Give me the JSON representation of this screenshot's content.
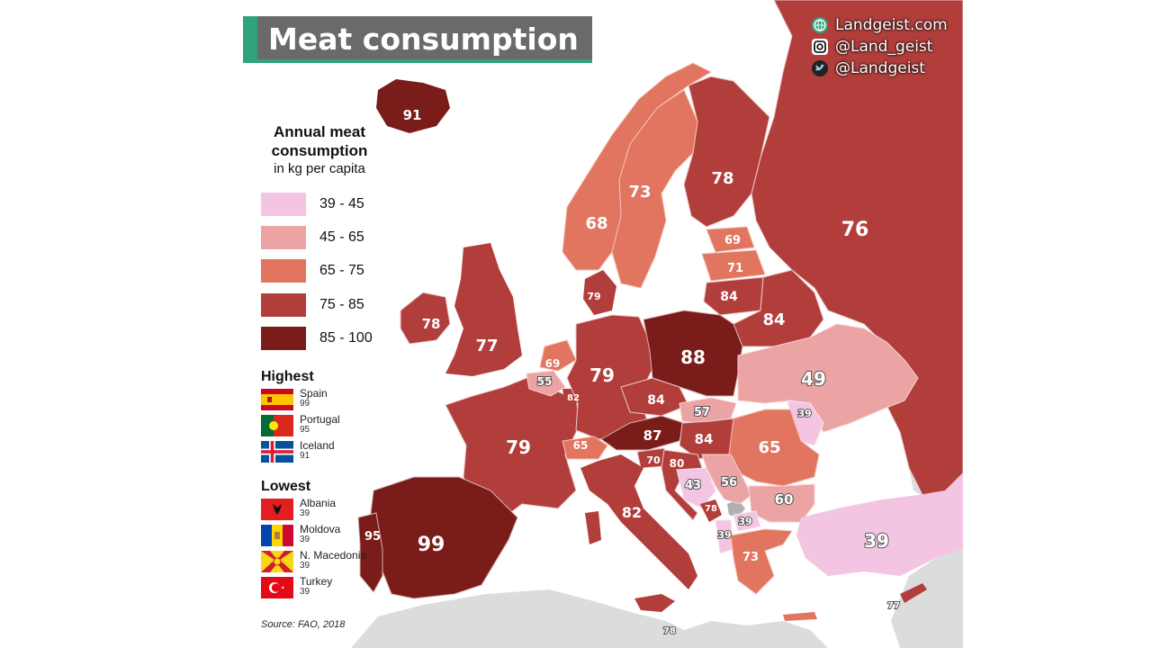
{
  "title": "Meat consumption",
  "social": [
    {
      "icon": "globe-icon",
      "text": "Landgeist.com"
    },
    {
      "icon": "instagram-icon",
      "text": "@Land_geist"
    },
    {
      "icon": "twitter-icon",
      "text": "@Landgeist"
    }
  ],
  "legend": {
    "title": "Annual meat consumption",
    "subtitle": "in kg per capita",
    "items": [
      {
        "label": "39 - 45",
        "color": "#f4c5e2"
      },
      {
        "label": "45 - 65",
        "color": "#eba3a3"
      },
      {
        "label": "65 - 75",
        "color": "#e17560"
      },
      {
        "label": "75 - 85",
        "color": "#b23e3b"
      },
      {
        "label": "85 - 100",
        "color": "#7a1c19"
      }
    ]
  },
  "highest": {
    "heading": "Highest",
    "items": [
      {
        "name": "Spain",
        "value": "99",
        "flag": "spain-flag-icon"
      },
      {
        "name": "Portugal",
        "value": "95",
        "flag": "portugal-flag-icon"
      },
      {
        "name": "Iceland",
        "value": "91",
        "flag": "iceland-flag-icon"
      }
    ]
  },
  "lowest": {
    "heading": "Lowest",
    "items": [
      {
        "name": "Albania",
        "value": "39",
        "flag": "albania-flag-icon"
      },
      {
        "name": "Moldova",
        "value": "39",
        "flag": "moldova-flag-icon"
      },
      {
        "name": "N. Macedonia",
        "value": "39",
        "flag": "north-macedonia-flag-icon"
      },
      {
        "name": "Turkey",
        "value": "39",
        "flag": "turkey-flag-icon"
      }
    ]
  },
  "source": "Source: FAO, 2018",
  "colors": {
    "sea": "#ffffff",
    "no_data": "#dcdcdc",
    "accent": "#2fa37a"
  },
  "countries": [
    {
      "id": "russia",
      "value": "76"
    },
    {
      "id": "finland",
      "value": "78"
    },
    {
      "id": "sweden",
      "value": "73"
    },
    {
      "id": "norway",
      "value": "68"
    },
    {
      "id": "iceland",
      "value": "91"
    },
    {
      "id": "estonia",
      "value": "69"
    },
    {
      "id": "latvia",
      "value": "71"
    },
    {
      "id": "lithuania",
      "value": "84"
    },
    {
      "id": "belarus",
      "value": "84"
    },
    {
      "id": "denmark",
      "value": "79"
    },
    {
      "id": "ireland",
      "value": "78"
    },
    {
      "id": "uk",
      "value": "77"
    },
    {
      "id": "netherlands",
      "value": "69"
    },
    {
      "id": "belgium",
      "value": "55"
    },
    {
      "id": "luxembourg",
      "value": "82"
    },
    {
      "id": "germany",
      "value": "79"
    },
    {
      "id": "poland",
      "value": "88"
    },
    {
      "id": "ukraine",
      "value": "49"
    },
    {
      "id": "czechia",
      "value": "84"
    },
    {
      "id": "slovakia",
      "value": "57"
    },
    {
      "id": "moldova",
      "value": "39"
    },
    {
      "id": "france",
      "value": "79"
    },
    {
      "id": "switzerland",
      "value": "65"
    },
    {
      "id": "austria",
      "value": "87"
    },
    {
      "id": "hungary",
      "value": "84"
    },
    {
      "id": "romania",
      "value": "65"
    },
    {
      "id": "slovenia",
      "value": "70"
    },
    {
      "id": "croatia",
      "value": "80"
    },
    {
      "id": "bosnia",
      "value": "43"
    },
    {
      "id": "serbia",
      "value": "56"
    },
    {
      "id": "bulgaria",
      "value": "60"
    },
    {
      "id": "montenegro",
      "value": "78"
    },
    {
      "id": "north-macedonia",
      "value": "39"
    },
    {
      "id": "albania",
      "value": "39"
    },
    {
      "id": "greece",
      "value": "73"
    },
    {
      "id": "turkey",
      "value": "39"
    },
    {
      "id": "spain",
      "value": "99"
    },
    {
      "id": "portugal",
      "value": "95"
    },
    {
      "id": "italy",
      "value": "82"
    },
    {
      "id": "cyprus",
      "value": "77"
    },
    {
      "id": "malta",
      "value": "78"
    }
  ]
}
